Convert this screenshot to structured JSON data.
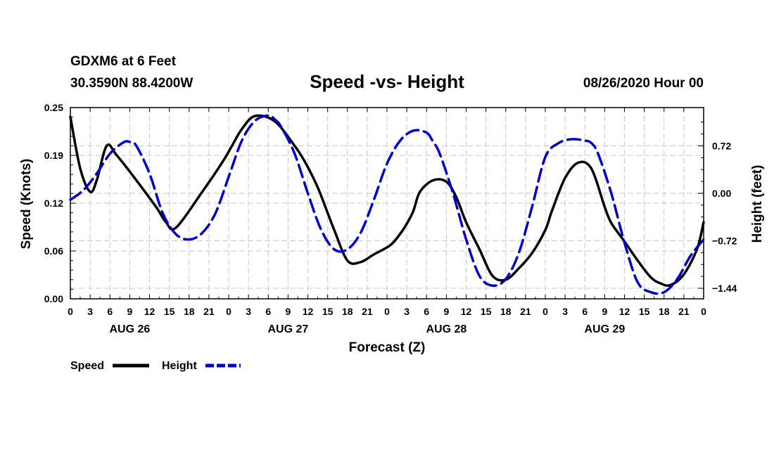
{
  "header": {
    "station": "GDXM6 at 6 Feet",
    "coords": "30.3590N 88.4200W",
    "title": "Speed -vs- Height",
    "datetime": "08/26/2020 Hour 00"
  },
  "chart_data": {
    "type": "line",
    "title": "Speed -vs- Height",
    "xlabel": "Forecast (Z)",
    "x_hours_range": [
      0,
      96
    ],
    "x_tick_every_hours": 3,
    "x_tick_labels": [
      "0",
      "3",
      "6",
      "9",
      "12",
      "15",
      "18",
      "21",
      "0",
      "3",
      "6",
      "9",
      "12",
      "15",
      "18",
      "21",
      "0",
      "3",
      "6",
      "9",
      "12",
      "15",
      "18",
      "21",
      "0",
      "3",
      "6",
      "9",
      "12",
      "15",
      "18",
      "21",
      "0"
    ],
    "day_labels": [
      {
        "label": "AUG 26",
        "hour": 9
      },
      {
        "label": "AUG 27",
        "hour": 33
      },
      {
        "label": "AUG 28",
        "hour": 57
      },
      {
        "label": "AUG 29",
        "hour": 81
      }
    ],
    "y_left": {
      "label": "Speed (Knots)",
      "range": [
        0,
        0.25
      ],
      "ticks": [
        {
          "value": 0.0,
          "label": "0.00"
        },
        {
          "value": 0.0625,
          "label": "0.06"
        },
        {
          "value": 0.125,
          "label": "0.12"
        },
        {
          "value": 0.1875,
          "label": "0.19"
        },
        {
          "value": 0.25,
          "label": "0.25"
        }
      ]
    },
    "y_right": {
      "label": "Height (feet)",
      "range": [
        -1.6,
        1.3
      ],
      "ticks": [
        {
          "value": 0.72,
          "label": "0.72"
        },
        {
          "value": 0.0,
          "label": "0.00"
        },
        {
          "value": -0.72,
          "label": "−0.72"
        },
        {
          "value": -1.44,
          "label": "−1.44"
        }
      ]
    },
    "series": [
      {
        "name": "Speed",
        "axis": "left",
        "color": "#000000",
        "style": "solid",
        "x": [
          0,
          1.5,
          3,
          4,
          5.5,
          7,
          10,
          13,
          14.5,
          16,
          20,
          23,
          24.5,
          26,
          28,
          31,
          34,
          35.5,
          37,
          38,
          40,
          42,
          44,
          46,
          48.5,
          50,
          51,
          52,
          53,
          55,
          57,
          58.5,
          60,
          62,
          64,
          66,
          68,
          70,
          72,
          73,
          75,
          77,
          79,
          81,
          82,
          84,
          86,
          88,
          89.5,
          91,
          93,
          95,
          96
        ],
        "values": [
          0.238,
          0.17,
          0.14,
          0.155,
          0.2,
          0.188,
          0.155,
          0.12,
          0.1,
          0.093,
          0.14,
          0.178,
          0.2,
          0.222,
          0.239,
          0.232,
          0.2,
          0.18,
          0.155,
          0.135,
          0.09,
          0.05,
          0.048,
          0.058,
          0.07,
          0.085,
          0.098,
          0.115,
          0.14,
          0.155,
          0.153,
          0.133,
          0.1,
          0.065,
          0.03,
          0.025,
          0.04,
          0.06,
          0.09,
          0.115,
          0.158,
          0.178,
          0.17,
          0.12,
          0.099,
          0.075,
          0.05,
          0.028,
          0.02,
          0.018,
          0.032,
          0.065,
          0.1
        ]
      },
      {
        "name": "Height",
        "axis": "right",
        "color": "#0000cc",
        "style": "dashed",
        "x": [
          0,
          2,
          4,
          6,
          8,
          9,
          10,
          12,
          14,
          16,
          18,
          20,
          22,
          24,
          26,
          28,
          30,
          31,
          32,
          34,
          36,
          38,
          40,
          42,
          44,
          46,
          48,
          50,
          52,
          54,
          55,
          56,
          58,
          60,
          62,
          64,
          66,
          68,
          70,
          72,
          74,
          76,
          78,
          79,
          80,
          82,
          84,
          86,
          88,
          90,
          92,
          94,
          96
        ],
        "values": [
          -0.1,
          0.05,
          0.3,
          0.6,
          0.77,
          0.78,
          0.72,
          0.3,
          -0.3,
          -0.62,
          -0.7,
          -0.6,
          -0.3,
          0.25,
          0.8,
          1.1,
          1.18,
          1.12,
          1.0,
          0.6,
          0.0,
          -0.55,
          -0.85,
          -0.85,
          -0.6,
          -0.1,
          0.45,
          0.8,
          0.95,
          0.92,
          0.78,
          0.6,
          0.0,
          -0.7,
          -1.25,
          -1.4,
          -1.3,
          -0.9,
          -0.2,
          0.55,
          0.76,
          0.82,
          0.8,
          0.76,
          0.6,
          0.0,
          -0.75,
          -1.35,
          -1.5,
          -1.5,
          -1.3,
          -0.95,
          -0.7
        ]
      }
    ]
  },
  "legend": {
    "items": [
      {
        "label": "Speed",
        "color": "#000000",
        "style": "solid"
      },
      {
        "label": "Height",
        "color": "#0000cc",
        "style": "dashed"
      }
    ]
  }
}
